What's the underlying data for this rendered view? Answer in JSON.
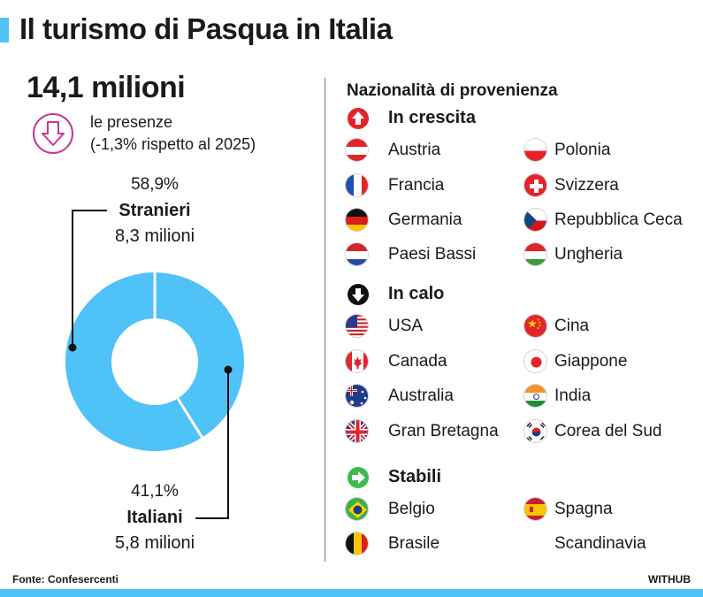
{
  "header": {
    "title": "Il turismo di Pasqua in Italia"
  },
  "summary": {
    "total": "14,1 milioni",
    "presenze_line1": "le presenze",
    "presenze_line2": "(-1,3% rispetto al 2025)",
    "trend_icon": "arrow-down-icon"
  },
  "chart_data": {
    "type": "pie",
    "donut": true,
    "series": [
      {
        "name": "Stranieri",
        "value": 58.9,
        "label": "58,9%",
        "amount": "8,3 milioni",
        "color": "#4fc3f7"
      },
      {
        "name": "Italiani",
        "value": 41.1,
        "label": "41,1%",
        "amount": "5,8 milioni",
        "color": "#4fc3f7"
      }
    ]
  },
  "nationalities": {
    "title": "Nazionalità di provenienza",
    "categories": [
      {
        "label": "In crescita",
        "icon": "arrow-up-icon",
        "icon_color": "#e3242b",
        "countries": [
          "Austria",
          "Francia",
          "Germania",
          "Paesi Bassi",
          "Polonia",
          "Svizzera",
          "Repubblica Ceca",
          "Ungheria"
        ]
      },
      {
        "label": "In calo",
        "icon": "arrow-down-icon",
        "icon_color": "#111111",
        "countries": [
          "USA",
          "Canada",
          "Australia",
          "Gran Bretagna",
          "Cina",
          "Giappone",
          "India",
          "Corea del Sud"
        ]
      },
      {
        "label": "Stabili",
        "icon": "arrow-right-icon",
        "icon_color": "#3dbb4a",
        "countries": [
          "Belgio",
          "Brasile",
          "Spagna",
          "Scandinavia"
        ]
      }
    ]
  },
  "footer": {
    "source": "Fonte: Confesercenti",
    "brand": "WITHUB"
  },
  "colors": {
    "accent": "#4fc3f7",
    "down_badge": "#c8368f"
  }
}
